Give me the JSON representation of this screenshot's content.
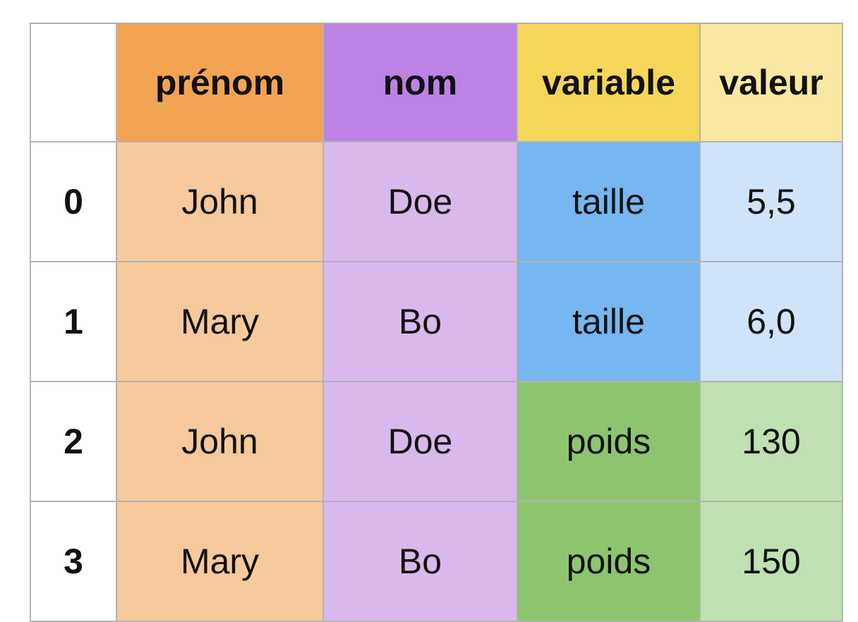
{
  "table": {
    "headers": [
      {
        "label": "prénom",
        "color": "#f2a453"
      },
      {
        "label": "nom",
        "color": "#bc82e5"
      },
      {
        "label": "variable",
        "color": "#f4d658"
      },
      {
        "label": "valeur",
        "color": "#f9e8a2"
      }
    ],
    "rows": [
      {
        "index": "0",
        "prenom": "John",
        "nom": "Doe",
        "variable": "taille",
        "valeur": "5,5",
        "variable_color": "#76b6f1",
        "valeur_color": "#cfe3f9"
      },
      {
        "index": "1",
        "prenom": "Mary",
        "nom": "Bo",
        "variable": "taille",
        "valeur": "6,0",
        "variable_color": "#76b6f1",
        "valeur_color": "#cfe3f9"
      },
      {
        "index": "2",
        "prenom": "John",
        "nom": "Doe",
        "variable": "poids",
        "valeur": "130",
        "variable_color": "#8dc56f",
        "valeur_color": "#bfe0b0"
      },
      {
        "index": "3",
        "prenom": "Mary",
        "nom": "Bo",
        "variable": "poids",
        "valeur": "150",
        "variable_color": "#8dc56f",
        "valeur_color": "#bfe0b0"
      }
    ],
    "prenom_cell_color": "#f6c99c",
    "nom_cell_color": "#d9b9ec"
  }
}
